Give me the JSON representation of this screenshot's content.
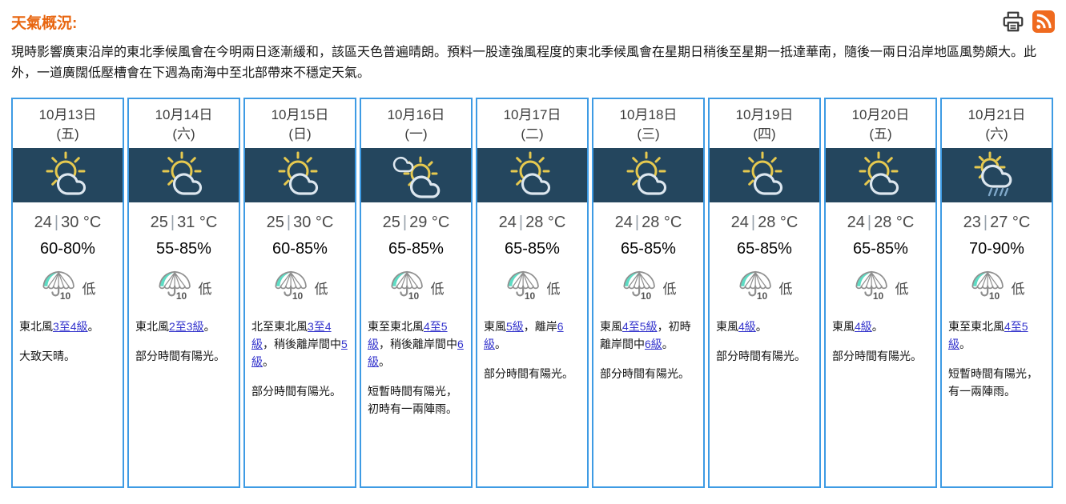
{
  "header": {
    "title": "天氣概況:",
    "summary": "現時影響廣東沿岸的東北季候風會在今明兩日逐漸緩和，該區天色普遍晴朗。預料一股達強風程度的東北季候風會在星期日稍後至星期一抵達華南，隨後一兩日沿岸地區風勢頗大。此外，一道廣闊低壓槽會在下週為南海中至北部帶來不穩定天氣。",
    "icons": [
      "printer-icon",
      "rss-icon"
    ]
  },
  "colors": {
    "title_orange": "#e8650f",
    "card_border_blue": "#3e9be4",
    "icon_band_navy": "#24465e",
    "sun_yellow": "#e6c94f",
    "cloud_white": "#dde7ef",
    "umbrella_teal": "#5edcc4",
    "link_blue": "#3333cc",
    "rss_orange": "#ef6a1f"
  },
  "forecast": {
    "days": [
      {
        "date": "10月13日",
        "weekday": "(五)",
        "icon": "sun-cloud-icon",
        "temp_low": "24",
        "temp_high": "30",
        "temp_unit": "°C",
        "humidity": "60-80%",
        "rain_probability": "低",
        "rain_probability_value": "10",
        "wind": [
          {
            "text": "東北風"
          },
          {
            "link": "3至4級"
          },
          {
            "text": "。"
          }
        ],
        "description": "大致天晴。"
      },
      {
        "date": "10月14日",
        "weekday": "(六)",
        "icon": "sun-cloud-icon",
        "temp_low": "25",
        "temp_high": "31",
        "temp_unit": "°C",
        "humidity": "55-85%",
        "rain_probability": "低",
        "rain_probability_value": "10",
        "wind": [
          {
            "text": "東北風"
          },
          {
            "link": "2至3級"
          },
          {
            "text": "。"
          }
        ],
        "description": "部分時間有陽光。"
      },
      {
        "date": "10月15日",
        "weekday": "(日)",
        "icon": "sun-cloud-icon",
        "temp_low": "25",
        "temp_high": "30",
        "temp_unit": "°C",
        "humidity": "60-85%",
        "rain_probability": "低",
        "rain_probability_value": "10",
        "wind": [
          {
            "text": "北至東北風"
          },
          {
            "link": "3至4級"
          },
          {
            "text": "，稍後離岸間中"
          },
          {
            "link": "5級"
          },
          {
            "text": "。"
          }
        ],
        "description": "部分時間有陽光。"
      },
      {
        "date": "10月16日",
        "weekday": "(一)",
        "icon": "cloud-sun-cloud-icon",
        "temp_low": "25",
        "temp_high": "29",
        "temp_unit": "°C",
        "humidity": "65-85%",
        "rain_probability": "低",
        "rain_probability_value": "10",
        "wind": [
          {
            "text": "東至東北風"
          },
          {
            "link": "4至5級"
          },
          {
            "text": "，稍後離岸間中"
          },
          {
            "link": "6級"
          },
          {
            "text": "。"
          }
        ],
        "description": "短暫時間有陽光，初時有一兩陣雨。"
      },
      {
        "date": "10月17日",
        "weekday": "(二)",
        "icon": "sun-cloud-icon",
        "temp_low": "24",
        "temp_high": "28",
        "temp_unit": "°C",
        "humidity": "65-85%",
        "rain_probability": "低",
        "rain_probability_value": "10",
        "wind": [
          {
            "text": "東風"
          },
          {
            "link": "5級"
          },
          {
            "text": "，離岸"
          },
          {
            "link": "6級"
          },
          {
            "text": "。"
          }
        ],
        "description": "部分時間有陽光。"
      },
      {
        "date": "10月18日",
        "weekday": "(三)",
        "icon": "sun-cloud-icon",
        "temp_low": "24",
        "temp_high": "28",
        "temp_unit": "°C",
        "humidity": "65-85%",
        "rain_probability": "低",
        "rain_probability_value": "10",
        "wind": [
          {
            "text": "東風"
          },
          {
            "link": "4至5級"
          },
          {
            "text": "，初時離岸間中"
          },
          {
            "link": "6級"
          },
          {
            "text": "。"
          }
        ],
        "description": "部分時間有陽光。"
      },
      {
        "date": "10月19日",
        "weekday": "(四)",
        "icon": "sun-cloud-icon",
        "temp_low": "24",
        "temp_high": "28",
        "temp_unit": "°C",
        "humidity": "65-85%",
        "rain_probability": "低",
        "rain_probability_value": "10",
        "wind": [
          {
            "text": "東風"
          },
          {
            "link": "4級"
          },
          {
            "text": "。"
          }
        ],
        "description": "部分時間有陽光。"
      },
      {
        "date": "10月20日",
        "weekday": "(五)",
        "icon": "sun-cloud-icon",
        "temp_low": "24",
        "temp_high": "28",
        "temp_unit": "°C",
        "humidity": "65-85%",
        "rain_probability": "低",
        "rain_probability_value": "10",
        "wind": [
          {
            "text": "東風"
          },
          {
            "link": "4級"
          },
          {
            "text": "。"
          }
        ],
        "description": "部分時間有陽光。"
      },
      {
        "date": "10月21日",
        "weekday": "(六)",
        "icon": "sun-rain-cloud-icon",
        "temp_low": "23",
        "temp_high": "27",
        "temp_unit": "°C",
        "humidity": "70-90%",
        "rain_probability": "低",
        "rain_probability_value": "10",
        "wind": [
          {
            "text": "東至東北風"
          },
          {
            "link": "4至5級"
          },
          {
            "text": "。"
          }
        ],
        "description": "短暫時間有陽光，有一兩陣雨。"
      }
    ]
  }
}
